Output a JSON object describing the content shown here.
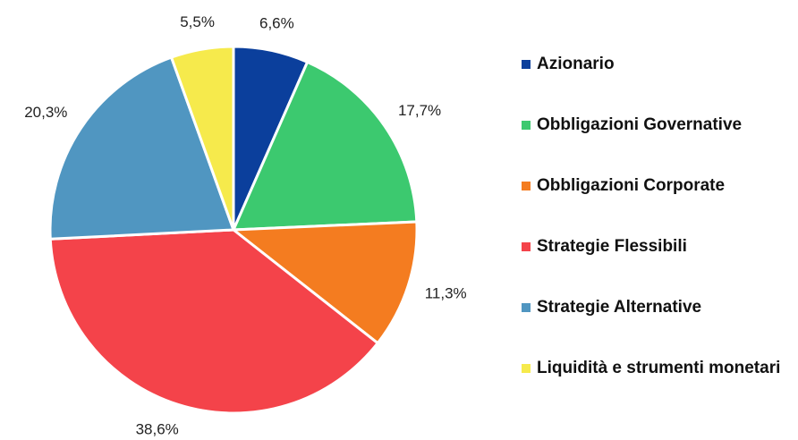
{
  "chart_data": {
    "type": "pie",
    "categories": [
      "Azionario",
      "Obbligazioni Governative",
      "Obbligazioni Corporate",
      "Strategie Flessibili",
      "Strategie Alternative",
      "Liquidità e strumenti monetari"
    ],
    "values": [
      6.6,
      17.7,
      11.3,
      38.6,
      20.3,
      5.5
    ],
    "value_labels": [
      "6,6%",
      "17,7%",
      "11,3%",
      "38,6%",
      "20,3%",
      "5,5%"
    ],
    "colors": [
      "#0b3f9c",
      "#3cc96f",
      "#f47c20",
      "#f4434a",
      "#5096c1",
      "#f6ea4c"
    ]
  }
}
